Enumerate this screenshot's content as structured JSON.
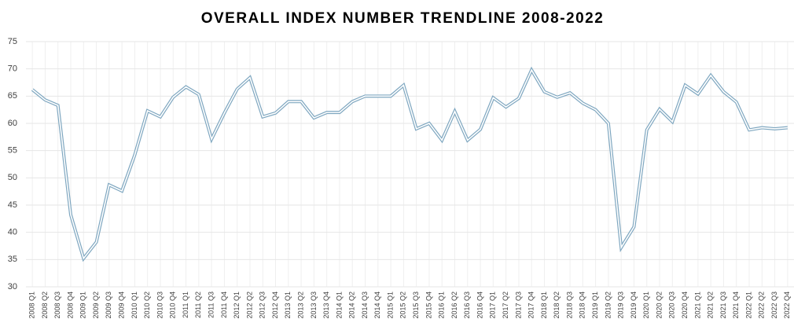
{
  "chart_data": {
    "type": "line",
    "title": "OVERALL INDEX NUMBER TRENDLINE 2008-2022",
    "categories": [
      "2008 Q1",
      "2008 Q2",
      "2008 Q3",
      "2008 Q4",
      "2009 Q1",
      "2009 Q2",
      "2009 Q3",
      "2009 Q4",
      "2010 Q1",
      "2010 Q2",
      "2010 Q3",
      "2010 Q4",
      "2011 Q1",
      "2011 Q2",
      "2011 Q3",
      "2011 Q4",
      "2012 Q1",
      "2012 Q2",
      "2012 Q3",
      "2012 Q4",
      "2013 Q1",
      "2013 Q2",
      "2013 Q3",
      "2013 Q4",
      "2014 Q1",
      "2014 Q2",
      "2014 Q3",
      "2014 Q4",
      "2015 Q1",
      "2015 Q2",
      "2015 Q3",
      "2015 Q4",
      "2016 Q1",
      "2016 Q2",
      "2016 Q3",
      "2016 Q4",
      "2017 Q1",
      "2017 Q2",
      "2017 Q3",
      "2017 Q4",
      "2018 Q1",
      "2018 Q2",
      "2018 Q3",
      "2018 Q4",
      "2019 Q1",
      "2019 Q2",
      "2019 Q3",
      "2019 Q4",
      "2020 Q1",
      "2020 Q2",
      "2020 Q3",
      "2020 Q4",
      "2021 Q1",
      "2021 Q2",
      "2021 Q3",
      "2021 Q4",
      "2022 Q1",
      "2022 Q2",
      "2022 Q3",
      "2022 Q4"
    ],
    "values": [
      66.2,
      64.3,
      63.3,
      43.2,
      35.2,
      38.2,
      48.7,
      47.6,
      54.2,
      62.3,
      61.2,
      64.8,
      66.7,
      65.3,
      57.1,
      61.9,
      66.3,
      68.4,
      61.2,
      61.9,
      64.0,
      64.0,
      61.0,
      62.0,
      62.0,
      64.0,
      65.0,
      65.0,
      65.0,
      67.0,
      59.0,
      60.0,
      56.9,
      62.2,
      56.9,
      58.9,
      64.7,
      63.0,
      64.6,
      69.8,
      65.8,
      64.8,
      65.6,
      63.7,
      62.5,
      60.0,
      37.2,
      41.0,
      58.8,
      62.6,
      60.3,
      67.0,
      65.4,
      68.8,
      65.8,
      63.9,
      58.8,
      59.2,
      59.0,
      59.2
    ],
    "color": "#7fa7c0",
    "ylim": [
      30,
      75
    ],
    "yticks": [
      30,
      35,
      40,
      45,
      50,
      55,
      60,
      65,
      70,
      75
    ],
    "grid": true
  }
}
